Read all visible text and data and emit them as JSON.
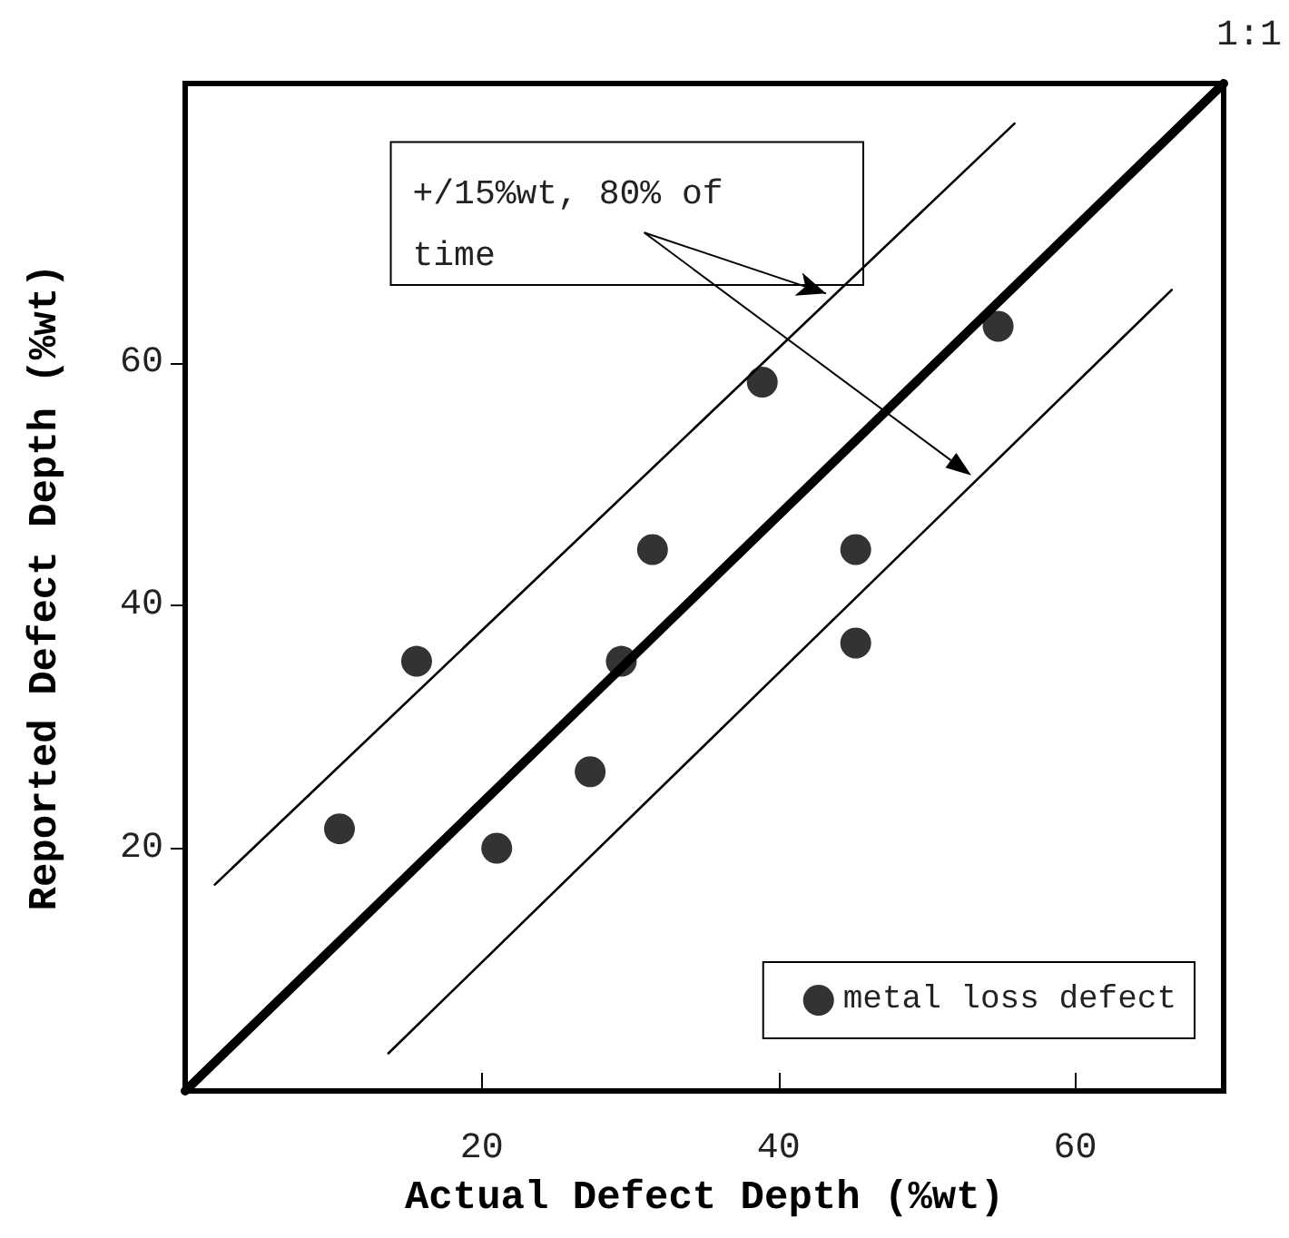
{
  "chart_data": {
    "type": "scatter",
    "xlabel": "Actual Defect Depth (%wt)",
    "ylabel": "Reported Defect Depth (%wt)",
    "xlim": [
      0,
      70
    ],
    "ylim": [
      0,
      83
    ],
    "xticks": [
      20,
      40,
      60
    ],
    "yticks": [
      20,
      40,
      60
    ],
    "grid": false,
    "legend": "bottom right",
    "marker": "circle",
    "annotations": [
      {
        "text": "+/15%wt, 80% of time",
        "x": 43.2,
        "y": 65.7
      }
    ],
    "series": [
      {
        "name": "metal loss defect",
        "color": "#000000",
        "x": [
          10.4,
          15.6,
          21.0,
          27.3,
          29.4,
          45.2,
          31.5,
          45.2,
          38.9,
          54.8
        ],
        "values": [
          21.6,
          35.4,
          20.0,
          26.3,
          35.4,
          36.9,
          44.6,
          44.6,
          58.4,
          63.0
        ]
      },
      {
        "type": "line",
        "name": "1:1",
        "color": "#000000",
        "marker": "none",
        "x": [
          0,
          70
        ],
        "values": [
          0,
          83
        ]
      },
      {
        "type": "line",
        "color": "#000000",
        "marker": "none",
        "x": [
          2,
          55.9
        ],
        "values": [
          17,
          79.7
        ]
      },
      {
        "type": "line",
        "color": "#000000",
        "marker": "none",
        "x": [
          13.7,
          66.5
        ],
        "values": [
          3.1,
          66
        ]
      }
    ]
  }
}
